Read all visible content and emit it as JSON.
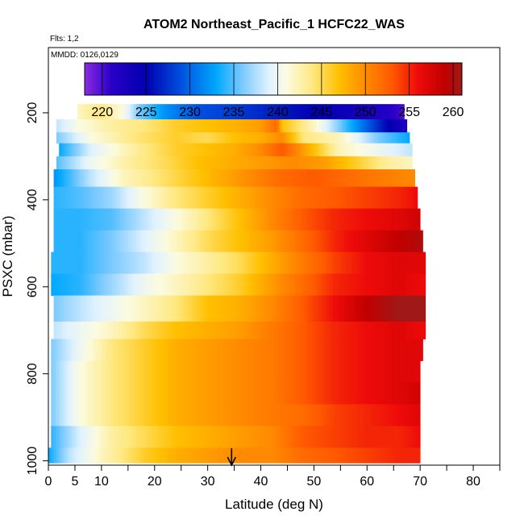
{
  "chart_data": {
    "type": "heatmap",
    "title": "ATOM2 Northeast_Pacific_1 HCFC22_WAS",
    "flights_label": "Flts: 1,2",
    "dates_label": "MMDD: 0126,0129",
    "xlabel": "Latitude (deg N)",
    "ylabel": "PSXC (mbar)",
    "xlim": [
      0,
      85
    ],
    "ylim": [
      1010,
      50
    ],
    "x_ticks": [
      0,
      5,
      10,
      20,
      30,
      40,
      50,
      60,
      70,
      80
    ],
    "x_minor_ticks": [
      15,
      25,
      35,
      45,
      55,
      65,
      75,
      85
    ],
    "y_ticks": [
      200,
      400,
      600,
      800,
      1000
    ],
    "colorbar": {
      "range": [
        218,
        261
      ],
      "ticks": [
        220,
        225,
        230,
        235,
        240,
        245,
        250,
        255,
        260
      ],
      "stops": [
        [
          218,
          "#8a2be2"
        ],
        [
          221,
          "#2a00c8"
        ],
        [
          225,
          "#0000b0"
        ],
        [
          229,
          "#0050e0"
        ],
        [
          233,
          "#00a8ff"
        ],
        [
          236,
          "#7ccaff"
        ],
        [
          239,
          "#e0f2ff"
        ],
        [
          241,
          "#fbfbe0"
        ],
        [
          244,
          "#ffe880"
        ],
        [
          247,
          "#ffc000"
        ],
        [
          250,
          "#ff8a00"
        ],
        [
          253,
          "#ff5a00"
        ],
        [
          256,
          "#ee0a0a"
        ],
        [
          259,
          "#c00000"
        ],
        [
          261,
          "#a01818"
        ]
      ]
    },
    "arrow_latitude": 34.5,
    "bands": [
      {
        "p": [
          180,
          215
        ],
        "lat": [
          5.5,
          67
        ],
        "points": [
          [
            5.5,
            242
          ],
          [
            10,
            244
          ],
          [
            14,
            241
          ],
          [
            17,
            236
          ],
          [
            22,
            232
          ],
          [
            28,
            229
          ],
          [
            35,
            228
          ],
          [
            45,
            226
          ],
          [
            55,
            224
          ],
          [
            63,
            222
          ],
          [
            67,
            220
          ]
        ]
      },
      {
        "p": [
          215,
          245
        ],
        "lat": [
          1.5,
          67.5
        ],
        "points": [
          [
            1.5,
            238
          ],
          [
            6,
            241
          ],
          [
            12,
            243
          ],
          [
            18,
            244
          ],
          [
            24,
            246
          ],
          [
            30,
            247
          ],
          [
            36,
            248
          ],
          [
            40,
            249
          ],
          [
            43,
            252
          ],
          [
            44,
            247
          ],
          [
            50,
            242
          ],
          [
            58,
            232
          ],
          [
            63,
            226
          ],
          [
            67.5,
            222
          ]
        ]
      },
      {
        "p": [
          245,
          270
        ],
        "lat": [
          1.5,
          68
        ],
        "points": [
          [
            1.5,
            236
          ],
          [
            8,
            241
          ],
          [
            16,
            244
          ],
          [
            24,
            246
          ],
          [
            30,
            245
          ],
          [
            35,
            247
          ],
          [
            40,
            248
          ],
          [
            44,
            250
          ],
          [
            48,
            244
          ],
          [
            55,
            242
          ],
          [
            62,
            236
          ],
          [
            68,
            233
          ]
        ]
      },
      {
        "p": [
          270,
          300
        ],
        "lat": [
          2,
          68.5
        ],
        "points": [
          [
            2,
            233
          ],
          [
            8,
            239
          ],
          [
            16,
            243
          ],
          [
            24,
            246
          ],
          [
            30,
            247
          ],
          [
            35,
            248
          ],
          [
            40,
            250
          ],
          [
            44,
            253
          ],
          [
            48,
            249
          ],
          [
            55,
            242
          ],
          [
            62,
            240
          ],
          [
            68.5,
            238
          ]
        ]
      },
      {
        "p": [
          300,
          330
        ],
        "lat": [
          1.5,
          68.5
        ],
        "points": [
          [
            1.5,
            235
          ],
          [
            8,
            240
          ],
          [
            15,
            243
          ],
          [
            22,
            245
          ],
          [
            28,
            247
          ],
          [
            34,
            248
          ],
          [
            40,
            249
          ],
          [
            46,
            250
          ],
          [
            52,
            249
          ],
          [
            58,
            246
          ],
          [
            64,
            243
          ],
          [
            68.5,
            242
          ]
        ]
      },
      {
        "p": [
          330,
          370
        ],
        "lat": [
          1,
          69
        ],
        "points": [
          [
            1,
            232
          ],
          [
            8,
            238
          ],
          [
            14,
            242
          ],
          [
            20,
            244
          ],
          [
            26,
            246
          ],
          [
            32,
            248
          ],
          [
            38,
            250
          ],
          [
            44,
            252
          ],
          [
            50,
            253
          ],
          [
            56,
            252
          ],
          [
            62,
            251
          ],
          [
            69,
            250
          ]
        ]
      },
      {
        "p": [
          370,
          420
        ],
        "lat": [
          1,
          69.5
        ],
        "points": [
          [
            1,
            234
          ],
          [
            6,
            235
          ],
          [
            12,
            237
          ],
          [
            18,
            241
          ],
          [
            24,
            244
          ],
          [
            30,
            246
          ],
          [
            36,
            248
          ],
          [
            42,
            250
          ],
          [
            48,
            252
          ],
          [
            54,
            253
          ],
          [
            60,
            254
          ],
          [
            66,
            255
          ],
          [
            69.5,
            256
          ]
        ]
      },
      {
        "p": [
          420,
          470
        ],
        "lat": [
          1,
          70
        ],
        "points": [
          [
            1,
            234
          ],
          [
            6,
            234
          ],
          [
            12,
            235
          ],
          [
            18,
            238
          ],
          [
            24,
            241
          ],
          [
            30,
            244
          ],
          [
            36,
            247
          ],
          [
            42,
            250
          ],
          [
            48,
            253
          ],
          [
            54,
            255
          ],
          [
            60,
            256
          ],
          [
            66,
            257
          ],
          [
            70,
            258
          ]
        ]
      },
      {
        "p": [
          470,
          520
        ],
        "lat": [
          1,
          70.5
        ],
        "points": [
          [
            1,
            234
          ],
          [
            6,
            234
          ],
          [
            12,
            236
          ],
          [
            18,
            239
          ],
          [
            24,
            242
          ],
          [
            30,
            245
          ],
          [
            36,
            247
          ],
          [
            42,
            249
          ],
          [
            48,
            252
          ],
          [
            54,
            255
          ],
          [
            60,
            257
          ],
          [
            66,
            259
          ],
          [
            70.5,
            260
          ]
        ]
      },
      {
        "p": [
          520,
          570
        ],
        "lat": [
          0.5,
          71
        ],
        "points": [
          [
            0.5,
            234
          ],
          [
            6,
            234
          ],
          [
            12,
            236
          ],
          [
            18,
            238
          ],
          [
            24,
            241
          ],
          [
            30,
            243
          ],
          [
            36,
            245
          ],
          [
            42,
            248
          ],
          [
            48,
            251
          ],
          [
            54,
            254
          ],
          [
            60,
            256
          ],
          [
            66,
            257
          ],
          [
            71,
            257
          ]
        ]
      },
      {
        "p": [
          570,
          620
        ],
        "lat": [
          0.5,
          71
        ],
        "points": [
          [
            0.5,
            233
          ],
          [
            6,
            234
          ],
          [
            12,
            237
          ],
          [
            18,
            240
          ],
          [
            24,
            242
          ],
          [
            30,
            244
          ],
          [
            36,
            246
          ],
          [
            42,
            249
          ],
          [
            48,
            252
          ],
          [
            54,
            255
          ],
          [
            60,
            256
          ],
          [
            66,
            257
          ],
          [
            71,
            256
          ]
        ]
      },
      {
        "p": [
          620,
          680
        ],
        "lat": [
          1,
          71
        ],
        "points": [
          [
            1,
            236
          ],
          [
            6,
            238
          ],
          [
            12,
            240
          ],
          [
            18,
            242
          ],
          [
            24,
            244
          ],
          [
            30,
            247
          ],
          [
            36,
            248
          ],
          [
            42,
            250
          ],
          [
            48,
            253
          ],
          [
            54,
            256
          ],
          [
            60,
            259
          ],
          [
            66,
            261
          ],
          [
            71,
            261
          ]
        ]
      },
      {
        "p": [
          680,
          720
        ],
        "lat": [
          1,
          71
        ],
        "points": [
          [
            1,
            238
          ],
          [
            6,
            240
          ],
          [
            12,
            242
          ],
          [
            18,
            245
          ],
          [
            24,
            247
          ],
          [
            30,
            248
          ],
          [
            36,
            249
          ],
          [
            42,
            251
          ],
          [
            48,
            253
          ],
          [
            54,
            255
          ],
          [
            60,
            256
          ],
          [
            66,
            257
          ],
          [
            71,
            256
          ]
        ]
      },
      {
        "p": [
          720,
          770
        ],
        "lat": [
          0.5,
          70.5
        ],
        "points": [
          [
            0.5,
            236
          ],
          [
            6,
            240
          ],
          [
            12,
            244
          ],
          [
            18,
            246
          ],
          [
            24,
            248
          ],
          [
            30,
            249
          ],
          [
            36,
            250
          ],
          [
            42,
            251
          ],
          [
            48,
            253
          ],
          [
            54,
            255
          ],
          [
            60,
            256
          ],
          [
            66,
            257
          ],
          [
            70.5,
            257
          ]
        ]
      },
      {
        "p": [
          770,
          820
        ],
        "lat": [
          0.5,
          70
        ],
        "points": [
          [
            0.5,
            236
          ],
          [
            6,
            241
          ],
          [
            12,
            244
          ],
          [
            18,
            246
          ],
          [
            24,
            248
          ],
          [
            30,
            249
          ],
          [
            36,
            250
          ],
          [
            42,
            251
          ],
          [
            48,
            253
          ],
          [
            54,
            255
          ],
          [
            60,
            256
          ],
          [
            66,
            257
          ],
          [
            70,
            257
          ]
        ]
      },
      {
        "p": [
          820,
          870
        ],
        "lat": [
          0.5,
          70
        ],
        "points": [
          [
            0.5,
            236
          ],
          [
            6,
            241
          ],
          [
            12,
            244
          ],
          [
            18,
            246
          ],
          [
            24,
            248
          ],
          [
            30,
            249
          ],
          [
            36,
            250
          ],
          [
            42,
            251
          ],
          [
            48,
            253
          ],
          [
            54,
            255
          ],
          [
            60,
            256
          ],
          [
            66,
            257
          ],
          [
            70,
            258
          ]
        ]
      },
      {
        "p": [
          870,
          920
        ],
        "lat": [
          0.5,
          70
        ],
        "points": [
          [
            0.5,
            236
          ],
          [
            6,
            241
          ],
          [
            12,
            244
          ],
          [
            18,
            246
          ],
          [
            24,
            248
          ],
          [
            30,
            249
          ],
          [
            36,
            250
          ],
          [
            42,
            251
          ],
          [
            48,
            252
          ],
          [
            54,
            254
          ],
          [
            60,
            255
          ],
          [
            66,
            256
          ],
          [
            70,
            257
          ]
        ]
      },
      {
        "p": [
          920,
          970
        ],
        "lat": [
          0.5,
          70
        ],
        "points": [
          [
            0.5,
            234
          ],
          [
            6,
            239
          ],
          [
            12,
            243
          ],
          [
            18,
            245
          ],
          [
            24,
            247
          ],
          [
            30,
            248
          ],
          [
            36,
            249
          ],
          [
            42,
            250
          ],
          [
            48,
            253
          ],
          [
            54,
            254
          ],
          [
            60,
            255
          ],
          [
            66,
            255
          ],
          [
            70,
            256
          ]
        ]
      },
      {
        "p": [
          970,
          1005
        ],
        "lat": [
          0,
          70
        ],
        "points": [
          [
            0,
            233
          ],
          [
            4,
            238
          ],
          [
            10,
            242
          ],
          [
            18,
            246
          ],
          [
            24,
            248
          ],
          [
            30,
            249
          ],
          [
            36,
            250
          ],
          [
            42,
            250
          ],
          [
            48,
            252
          ],
          [
            54,
            253
          ],
          [
            60,
            254
          ],
          [
            66,
            255
          ],
          [
            70,
            255
          ]
        ]
      }
    ]
  }
}
